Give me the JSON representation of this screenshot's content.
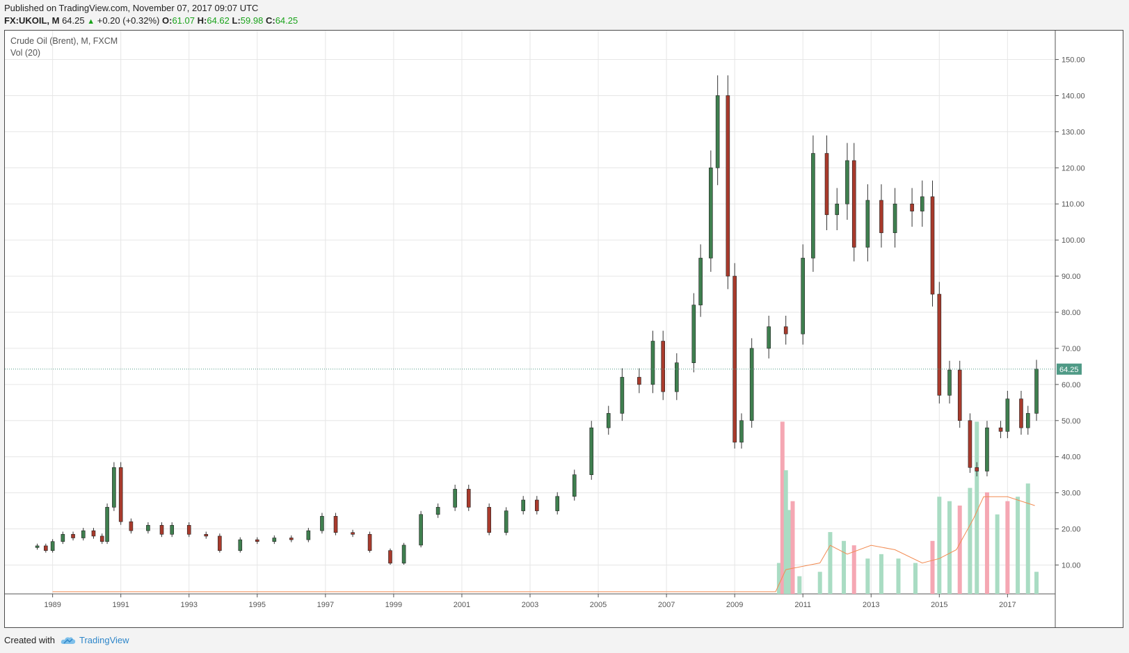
{
  "header": {
    "published": "Published on TradingView.com, November 07, 2017 09:07 UTC",
    "symbol": "FX:UKOIL, M",
    "last": "64.25",
    "change": "+0.20 (+0.32%)",
    "o_label": "O:",
    "o_value": "61.07",
    "h_label": "H:",
    "h_value": "64.62",
    "l_label": "L:",
    "l_value": "59.98",
    "c_label": "C:",
    "c_value": "64.25"
  },
  "legend": {
    "title": "Crude Oil (Brent), M, FXCM",
    "volume": "Vol (20)"
  },
  "footer": {
    "created_with": "Created with",
    "brand": "TradingView"
  },
  "colors": {
    "up": "#3f7f4f",
    "down": "#a83a2c",
    "vol_up": "#a9dcc3",
    "vol_down": "#f5a7b3",
    "vol_ma": "#f28b52",
    "last_line": "#4f9a86",
    "grid": "#e6e6e6"
  },
  "chart_data": {
    "type": "candlestick",
    "title": "Crude Oil (Brent), M, FXCM",
    "last_price": 64.25,
    "price_tag": "64.25",
    "ylim": [
      2,
      158
    ],
    "y_ticks": [
      "10.00",
      "20.00",
      "30.00",
      "40.00",
      "50.00",
      "60.00",
      "70.00",
      "80.00",
      "90.00",
      "100.00",
      "110.00",
      "120.00",
      "130.00",
      "140.00",
      "150.00"
    ],
    "x_ticks": [
      "1989",
      "1991",
      "1993",
      "1995",
      "1997",
      "1999",
      "2001",
      "2003",
      "2005",
      "2007",
      "2009",
      "2011",
      "2013",
      "2015",
      "2017"
    ],
    "price_series": [
      {
        "date": "1988.55",
        "close": 15.3
      },
      {
        "date": "1988.8",
        "close": 14.0
      },
      {
        "date": "1989.0",
        "close": 16.5
      },
      {
        "date": "1989.3",
        "close": 18.5
      },
      {
        "date": "1989.6",
        "close": 17.5
      },
      {
        "date": "1989.9",
        "close": 19.5
      },
      {
        "date": "1990.2",
        "close": 18.0
      },
      {
        "date": "1990.45",
        "close": 16.5
      },
      {
        "date": "1990.6",
        "close": 26.0
      },
      {
        "date": "1990.8",
        "close": 37.0
      },
      {
        "date": "1991.0",
        "close": 22.0
      },
      {
        "date": "1991.3",
        "close": 19.5
      },
      {
        "date": "1991.8",
        "close": 21.0
      },
      {
        "date": "1992.2",
        "close": 18.5
      },
      {
        "date": "1992.5",
        "close": 21.0
      },
      {
        "date": "1993.0",
        "close": 18.5
      },
      {
        "date": "1993.5",
        "close": 18.0
      },
      {
        "date": "1993.9",
        "close": 14.0
      },
      {
        "date": "1994.5",
        "close": 17.0
      },
      {
        "date": "1995.0",
        "close": 16.5
      },
      {
        "date": "1995.5",
        "close": 17.5
      },
      {
        "date": "1996.0",
        "close": 17.0
      },
      {
        "date": "1996.5",
        "close": 19.5
      },
      {
        "date": "1996.9",
        "close": 23.5
      },
      {
        "date": "1997.3",
        "close": 19.0
      },
      {
        "date": "1997.8",
        "close": 18.5
      },
      {
        "date": "1998.3",
        "close": 14.0
      },
      {
        "date": "1998.9",
        "close": 10.5
      },
      {
        "date": "1999.3",
        "close": 15.5
      },
      {
        "date": "1999.8",
        "close": 24.0
      },
      {
        "date": "2000.3",
        "close": 26.0
      },
      {
        "date": "2000.8",
        "close": 31.0
      },
      {
        "date": "2001.2",
        "close": 26.0
      },
      {
        "date": "2001.8",
        "close": 19.0
      },
      {
        "date": "2002.3",
        "close": 25.0
      },
      {
        "date": "2002.8",
        "close": 28.0
      },
      {
        "date": "2003.2",
        "close": 25.0
      },
      {
        "date": "2003.8",
        "close": 29.0
      },
      {
        "date": "2004.3",
        "close": 35.0
      },
      {
        "date": "2004.8",
        "close": 48.0
      },
      {
        "date": "2005.3",
        "close": 52.0
      },
      {
        "date": "2005.7",
        "close": 62.0
      },
      {
        "date": "2006.2",
        "close": 60.0
      },
      {
        "date": "2006.6",
        "close": 72.0
      },
      {
        "date": "2006.9",
        "close": 58.0
      },
      {
        "date": "2007.3",
        "close": 66.0
      },
      {
        "date": "2007.8",
        "close": 82.0
      },
      {
        "date": "2008.0",
        "close": 95.0
      },
      {
        "date": "2008.3",
        "close": 120.0
      },
      {
        "date": "2008.5",
        "close": 140.0
      },
      {
        "date": "2008.8",
        "close": 90.0
      },
      {
        "date": "2009.0",
        "close": 44.0
      },
      {
        "date": "2009.2",
        "close": 50.0
      },
      {
        "date": "2009.5",
        "close": 70.0
      },
      {
        "date": "2010.0",
        "close": 76.0
      },
      {
        "date": "2010.5",
        "close": 74.0
      },
      {
        "date": "2011.0",
        "close": 95.0
      },
      {
        "date": "2011.3",
        "close": 124.0
      },
      {
        "date": "2011.7",
        "close": 107.0
      },
      {
        "date": "2012.0",
        "close": 110.0
      },
      {
        "date": "2012.3",
        "close": 122.0
      },
      {
        "date": "2012.5",
        "close": 98.0
      },
      {
        "date": "2012.9",
        "close": 111.0
      },
      {
        "date": "2013.3",
        "close": 102.0
      },
      {
        "date": "2013.7",
        "close": 110.0
      },
      {
        "date": "2014.2",
        "close": 108.0
      },
      {
        "date": "2014.5",
        "close": 112.0
      },
      {
        "date": "2014.8",
        "close": 85.0
      },
      {
        "date": "2015.0",
        "close": 57.0
      },
      {
        "date": "2015.3",
        "close": 64.0
      },
      {
        "date": "2015.6",
        "close": 50.0
      },
      {
        "date": "2015.9",
        "close": 37.0
      },
      {
        "date": "2016.1",
        "close": 36.0
      },
      {
        "date": "2016.4",
        "close": 48.0
      },
      {
        "date": "2016.8",
        "close": 47.0
      },
      {
        "date": "2017.0",
        "close": 56.0
      },
      {
        "date": "2017.4",
        "close": 48.0
      },
      {
        "date": "2017.6",
        "close": 52.0
      },
      {
        "date": "2017.85",
        "close": 64.25
      }
    ],
    "volume_series": [
      {
        "date": "2010.3",
        "volume": 7,
        "dir": "up"
      },
      {
        "date": "2010.4",
        "volume": 39,
        "dir": "down"
      },
      {
        "date": "2010.5",
        "volume": 28,
        "dir": "up"
      },
      {
        "date": "2010.6",
        "volume": 19,
        "dir": "up"
      },
      {
        "date": "2010.7",
        "volume": 21,
        "dir": "down"
      },
      {
        "date": "2010.9",
        "volume": 4,
        "dir": "up"
      },
      {
        "date": "2011.5",
        "volume": 5,
        "dir": "up"
      },
      {
        "date": "2011.8",
        "volume": 14,
        "dir": "up"
      },
      {
        "date": "2012.2",
        "volume": 12,
        "dir": "up"
      },
      {
        "date": "2012.5",
        "volume": 11,
        "dir": "down"
      },
      {
        "date": "2012.9",
        "volume": 8,
        "dir": "up"
      },
      {
        "date": "2013.3",
        "volume": 9,
        "dir": "up"
      },
      {
        "date": "2013.8",
        "volume": 8,
        "dir": "up"
      },
      {
        "date": "2014.3",
        "volume": 7,
        "dir": "up"
      },
      {
        "date": "2014.8",
        "volume": 12,
        "dir": "down"
      },
      {
        "date": "2015.0",
        "volume": 22,
        "dir": "up"
      },
      {
        "date": "2015.3",
        "volume": 21,
        "dir": "up"
      },
      {
        "date": "2015.6",
        "volume": 20,
        "dir": "down"
      },
      {
        "date": "2015.9",
        "volume": 24,
        "dir": "up"
      },
      {
        "date": "2016.1",
        "volume": 39,
        "dir": "up"
      },
      {
        "date": "2016.4",
        "volume": 23,
        "dir": "down"
      },
      {
        "date": "2016.7",
        "volume": 18,
        "dir": "up"
      },
      {
        "date": "2017.0",
        "volume": 21,
        "dir": "down"
      },
      {
        "date": "2017.3",
        "volume": 22,
        "dir": "up"
      },
      {
        "date": "2017.6",
        "volume": 25,
        "dir": "up"
      },
      {
        "date": "2017.85",
        "volume": 5,
        "dir": "up"
      }
    ]
  }
}
